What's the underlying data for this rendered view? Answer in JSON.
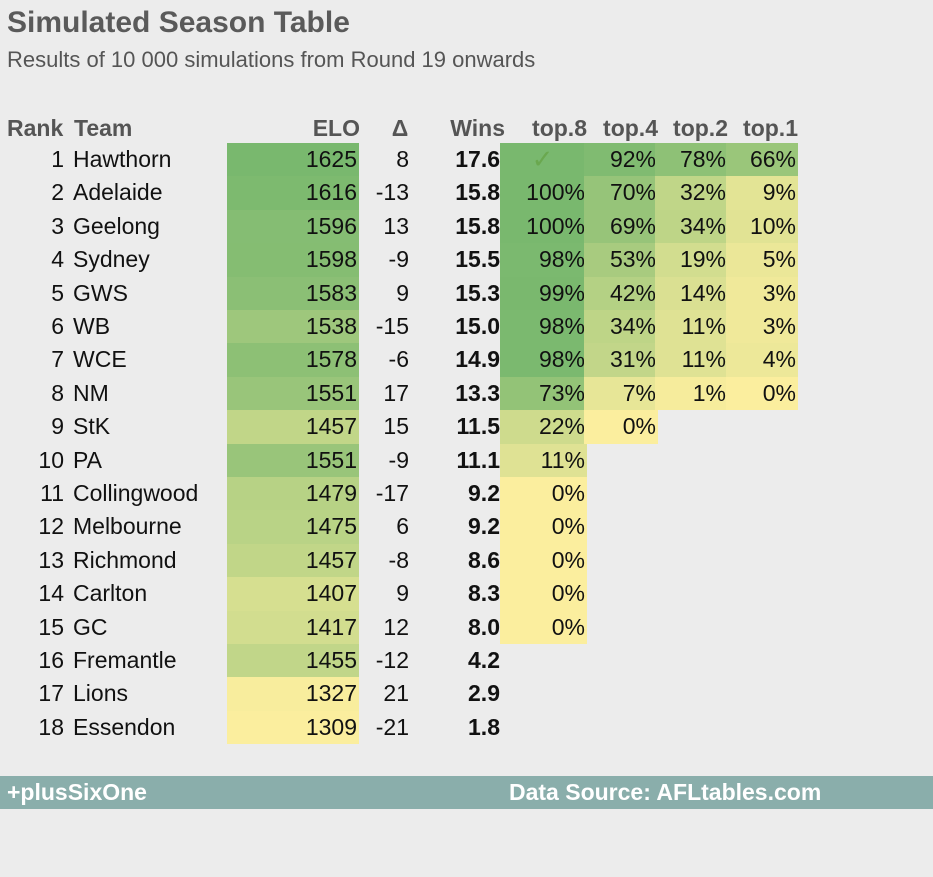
{
  "header": {
    "title": "Simulated Season Table",
    "subtitle": "Results of 10 000 simulations from Round 19 onwards"
  },
  "columns": {
    "rank": "Rank",
    "team": "Team",
    "elo": "ELO",
    "delta": "Δ",
    "wins": "Wins",
    "top8": "top.8",
    "top4": "top.4",
    "top2": "top.2",
    "top1": "top.1"
  },
  "check_symbol": "✓",
  "colors": {
    "green": "#79b86e",
    "yellow": "#fbee9e",
    "background": "#ececec",
    "footer": "#8aaeab"
  },
  "chart_data": {
    "type": "table",
    "rows": [
      {
        "rank": "1",
        "team": "Hawthorn",
        "elo": "1625",
        "delta": "8",
        "wins": "17.6",
        "top8": "✓",
        "top4": "92%",
        "top2": "78%",
        "top1": "66%"
      },
      {
        "rank": "2",
        "team": "Adelaide",
        "elo": "1616",
        "delta": "-13",
        "wins": "15.8",
        "top8": "100%",
        "top4": "70%",
        "top2": "32%",
        "top1": "9%"
      },
      {
        "rank": "3",
        "team": "Geelong",
        "elo": "1596",
        "delta": "13",
        "wins": "15.8",
        "top8": "100%",
        "top4": "69%",
        "top2": "34%",
        "top1": "10%"
      },
      {
        "rank": "4",
        "team": "Sydney",
        "elo": "1598",
        "delta": "-9",
        "wins": "15.5",
        "top8": "98%",
        "top4": "53%",
        "top2": "19%",
        "top1": "5%"
      },
      {
        "rank": "5",
        "team": "GWS",
        "elo": "1583",
        "delta": "9",
        "wins": "15.3",
        "top8": "99%",
        "top4": "42%",
        "top2": "14%",
        "top1": "3%"
      },
      {
        "rank": "6",
        "team": "WB",
        "elo": "1538",
        "delta": "-15",
        "wins": "15.0",
        "top8": "98%",
        "top4": "34%",
        "top2": "11%",
        "top1": "3%"
      },
      {
        "rank": "7",
        "team": "WCE",
        "elo": "1578",
        "delta": "-6",
        "wins": "14.9",
        "top8": "98%",
        "top4": "31%",
        "top2": "11%",
        "top1": "4%"
      },
      {
        "rank": "8",
        "team": "NM",
        "elo": "1551",
        "delta": "17",
        "wins": "13.3",
        "top8": "73%",
        "top4": "7%",
        "top2": "1%",
        "top1": "0%"
      },
      {
        "rank": "9",
        "team": "StK",
        "elo": "1457",
        "delta": "15",
        "wins": "11.5",
        "top8": "22%",
        "top4": "0%",
        "top2": "",
        "top1": ""
      },
      {
        "rank": "10",
        "team": "PA",
        "elo": "1551",
        "delta": "-9",
        "wins": "11.1",
        "top8": "11%",
        "top4": "",
        "top2": "",
        "top1": ""
      },
      {
        "rank": "11",
        "team": "Collingwood",
        "elo": "1479",
        "delta": "-17",
        "wins": "9.2",
        "top8": "0%",
        "top4": "",
        "top2": "",
        "top1": ""
      },
      {
        "rank": "12",
        "team": "Melbourne",
        "elo": "1475",
        "delta": "6",
        "wins": "9.2",
        "top8": "0%",
        "top4": "",
        "top2": "",
        "top1": ""
      },
      {
        "rank": "13",
        "team": "Richmond",
        "elo": "1457",
        "delta": "-8",
        "wins": "8.6",
        "top8": "0%",
        "top4": "",
        "top2": "",
        "top1": ""
      },
      {
        "rank": "14",
        "team": "Carlton",
        "elo": "1407",
        "delta": "9",
        "wins": "8.3",
        "top8": "0%",
        "top4": "",
        "top2": "",
        "top1": ""
      },
      {
        "rank": "15",
        "team": "GC",
        "elo": "1417",
        "delta": "12",
        "wins": "8.0",
        "top8": "0%",
        "top4": "",
        "top2": "",
        "top1": ""
      },
      {
        "rank": "16",
        "team": "Fremantle",
        "elo": "1455",
        "delta": "-12",
        "wins": "4.2",
        "top8": "",
        "top4": "",
        "top2": "",
        "top1": ""
      },
      {
        "rank": "17",
        "team": "Lions",
        "elo": "1327",
        "delta": "21",
        "wins": "2.9",
        "top8": "",
        "top4": "",
        "top2": "",
        "top1": ""
      },
      {
        "rank": "18",
        "team": "Essendon",
        "elo": "1309",
        "delta": "-21",
        "wins": "1.8",
        "top8": "",
        "top4": "",
        "top2": "",
        "top1": ""
      }
    ]
  },
  "footer": {
    "brand": "+plusSixOne",
    "source": "Data Source: AFLtables.com"
  }
}
